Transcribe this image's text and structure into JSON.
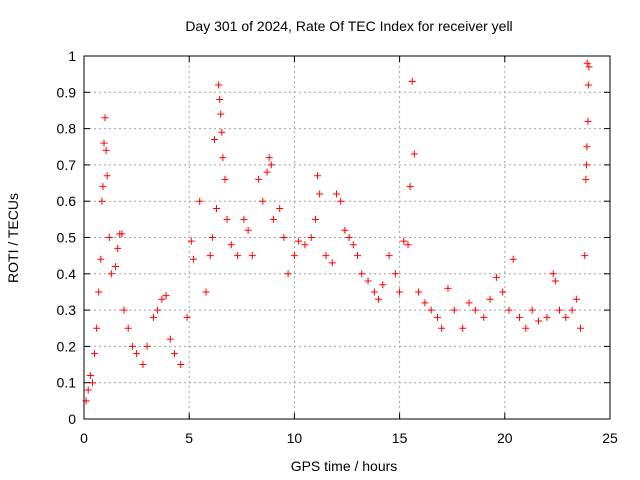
{
  "chart_data": {
    "type": "scatter",
    "title": "Day 301 of 2024, Rate Of TEC Index for receiver yell",
    "xlabel": "GPS time / hours",
    "ylabel": "ROTI / TECUs",
    "xlim": [
      0,
      25
    ],
    "ylim": [
      0,
      1
    ],
    "x_ticks": [
      "0",
      "5",
      "10",
      "15",
      "20",
      "25"
    ],
    "y_ticks": [
      "0",
      "0.1",
      "0.2",
      "0.3",
      "0.4",
      "0.5",
      "0.6",
      "0.7",
      "0.8",
      "0.9",
      "1"
    ],
    "grid": true,
    "legend": "none",
    "marker": "plus",
    "series": [
      {
        "color": "#ff0000",
        "points": [
          [
            0.1,
            0.05
          ],
          [
            0.2,
            0.08
          ],
          [
            0.3,
            0.12
          ],
          [
            0.4,
            0.1
          ],
          [
            0.5,
            0.18
          ],
          [
            0.6,
            0.25
          ],
          [
            0.7,
            0.35
          ],
          [
            0.8,
            0.44
          ],
          [
            0.85,
            0.6
          ],
          [
            0.9,
            0.64
          ],
          [
            0.95,
            0.76
          ],
          [
            1.0,
            0.83
          ],
          [
            1.05,
            0.74
          ],
          [
            1.1,
            0.67
          ],
          [
            1.2,
            0.5
          ],
          [
            1.3,
            0.4
          ],
          [
            1.5,
            0.42
          ],
          [
            1.6,
            0.47
          ],
          [
            1.7,
            0.51
          ],
          [
            1.8,
            0.51
          ],
          [
            1.9,
            0.3
          ],
          [
            2.1,
            0.25
          ],
          [
            2.3,
            0.2
          ],
          [
            2.5,
            0.18
          ],
          [
            2.8,
            0.15
          ],
          [
            3.0,
            0.2
          ],
          [
            3.3,
            0.28
          ],
          [
            3.5,
            0.3
          ],
          [
            3.7,
            0.33
          ],
          [
            3.9,
            0.34
          ],
          [
            4.1,
            0.22
          ],
          [
            4.3,
            0.18
          ],
          [
            4.6,
            0.15
          ],
          [
            4.9,
            0.28
          ],
          [
            5.1,
            0.49
          ],
          [
            5.2,
            0.44
          ],
          [
            5.5,
            0.6
          ],
          [
            5.8,
            0.35
          ],
          [
            6.0,
            0.45
          ],
          [
            6.1,
            0.5
          ],
          [
            6.2,
            0.77
          ],
          [
            6.3,
            0.58
          ],
          [
            6.4,
            0.92
          ],
          [
            6.45,
            0.88
          ],
          [
            6.5,
            0.84
          ],
          [
            6.55,
            0.79
          ],
          [
            6.6,
            0.72
          ],
          [
            6.7,
            0.66
          ],
          [
            6.8,
            0.55
          ],
          [
            7.0,
            0.48
          ],
          [
            7.3,
            0.45
          ],
          [
            7.6,
            0.55
          ],
          [
            7.8,
            0.52
          ],
          [
            8.0,
            0.45
          ],
          [
            8.3,
            0.66
          ],
          [
            8.5,
            0.6
          ],
          [
            8.7,
            0.68
          ],
          [
            8.8,
            0.72
          ],
          [
            8.9,
            0.7
          ],
          [
            9.0,
            0.55
          ],
          [
            9.3,
            0.58
          ],
          [
            9.5,
            0.5
          ],
          [
            9.7,
            0.4
          ],
          [
            10.0,
            0.45
          ],
          [
            10.2,
            0.49
          ],
          [
            10.5,
            0.48
          ],
          [
            10.8,
            0.5
          ],
          [
            11.0,
            0.55
          ],
          [
            11.1,
            0.67
          ],
          [
            11.2,
            0.62
          ],
          [
            11.5,
            0.45
          ],
          [
            11.8,
            0.43
          ],
          [
            12.0,
            0.62
          ],
          [
            12.2,
            0.6
          ],
          [
            12.4,
            0.52
          ],
          [
            12.6,
            0.5
          ],
          [
            12.8,
            0.48
          ],
          [
            13.0,
            0.45
          ],
          [
            13.2,
            0.4
          ],
          [
            13.5,
            0.38
          ],
          [
            13.8,
            0.35
          ],
          [
            14.0,
            0.33
          ],
          [
            14.2,
            0.37
          ],
          [
            14.5,
            0.45
          ],
          [
            14.8,
            0.4
          ],
          [
            15.0,
            0.35
          ],
          [
            15.2,
            0.49
          ],
          [
            15.4,
            0.48
          ],
          [
            15.5,
            0.64
          ],
          [
            15.6,
            0.93
          ],
          [
            15.7,
            0.73
          ],
          [
            15.9,
            0.35
          ],
          [
            16.2,
            0.32
          ],
          [
            16.5,
            0.3
          ],
          [
            16.8,
            0.28
          ],
          [
            17.0,
            0.25
          ],
          [
            17.3,
            0.36
          ],
          [
            17.6,
            0.3
          ],
          [
            18.0,
            0.25
          ],
          [
            18.3,
            0.32
          ],
          [
            18.6,
            0.3
          ],
          [
            19.0,
            0.28
          ],
          [
            19.3,
            0.33
          ],
          [
            19.6,
            0.39
          ],
          [
            19.9,
            0.35
          ],
          [
            20.2,
            0.3
          ],
          [
            20.4,
            0.44
          ],
          [
            20.7,
            0.28
          ],
          [
            21.0,
            0.25
          ],
          [
            21.3,
            0.3
          ],
          [
            21.6,
            0.27
          ],
          [
            22.0,
            0.28
          ],
          [
            22.3,
            0.4
          ],
          [
            22.4,
            0.38
          ],
          [
            22.6,
            0.3
          ],
          [
            22.9,
            0.28
          ],
          [
            23.2,
            0.3
          ],
          [
            23.4,
            0.33
          ],
          [
            23.6,
            0.25
          ],
          [
            23.8,
            0.45
          ],
          [
            23.85,
            0.66
          ],
          [
            23.9,
            0.75
          ],
          [
            23.95,
            0.82
          ],
          [
            24.0,
            0.97
          ],
          [
            23.92,
            0.98
          ],
          [
            23.97,
            0.92
          ],
          [
            23.88,
            0.7
          ]
        ]
      }
    ]
  }
}
